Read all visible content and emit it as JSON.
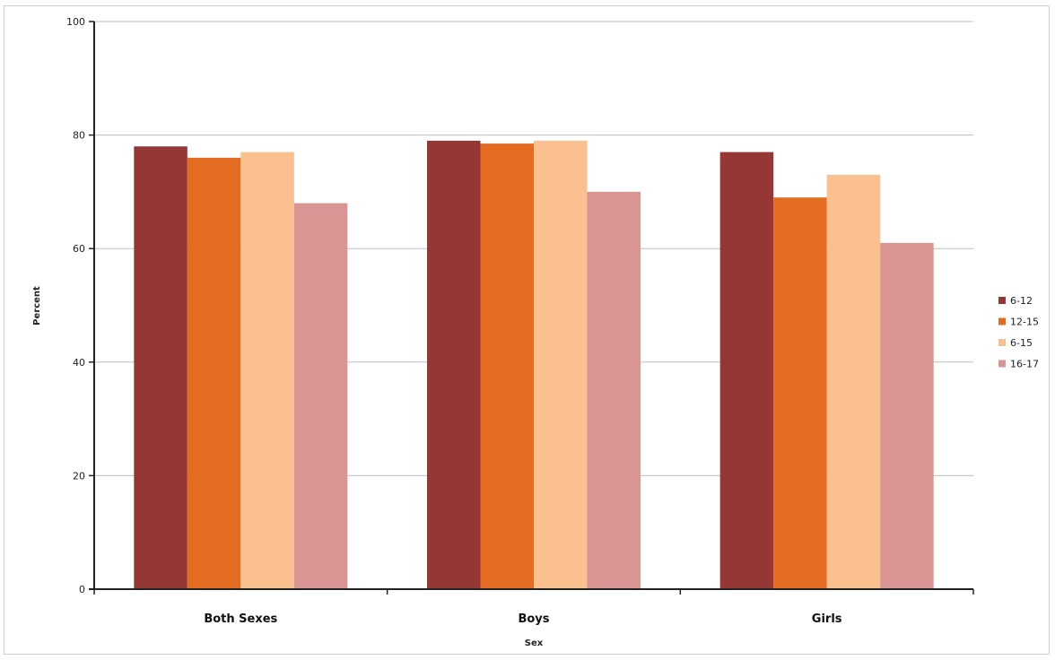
{
  "chart_data": {
    "type": "bar",
    "title": "",
    "xlabel": "Sex",
    "ylabel": "Percent",
    "categories": [
      "Both Sexes",
      "Boys",
      "Girls"
    ],
    "ylim": [
      0,
      100
    ],
    "yticks": [
      "0",
      "20",
      "40",
      "60",
      "80",
      "100"
    ],
    "grid": true,
    "legend_position": "right",
    "series": [
      {
        "name": "6-12",
        "color": "#953735",
        "values": [
          78,
          79,
          77
        ]
      },
      {
        "name": "12-15",
        "color": "#E46C22",
        "values": [
          76,
          78.5,
          69
        ]
      },
      {
        "name": "6-15",
        "color": "#FAC090",
        "values": [
          77,
          79,
          73
        ]
      },
      {
        "name": "16-17",
        "color": "#D99594",
        "values": [
          68,
          70,
          61
        ]
      }
    ]
  }
}
